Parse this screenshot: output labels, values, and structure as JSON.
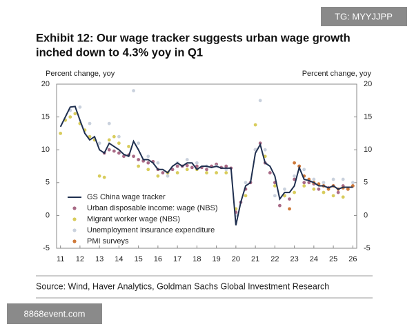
{
  "watermarks": [
    "TG: MYYJJPP",
    "8868event.com"
  ],
  "chart_data": {
    "type": "line",
    "title": [
      "Exhibit 12: Our wage tracker suggests urban wage growth",
      "inched down to 4.3% yoy in Q1"
    ],
    "y_label": "Percent change, yoy",
    "y2_label": "Percent change, yoy",
    "source": "Source: Wind, Haver Analytics, Goldman Sachs Global Investment Research",
    "xlim": [
      10.8,
      26.2
    ],
    "xticks": [
      11,
      12,
      13,
      14,
      15,
      16,
      17,
      18,
      19,
      20,
      21,
      22,
      23,
      24,
      25,
      26
    ],
    "ylim": [
      -5,
      20
    ],
    "yticks": [
      -5,
      0,
      5,
      10,
      15,
      20
    ],
    "y2lim": [
      -5,
      20
    ],
    "y2ticks": [
      -5,
      0,
      5,
      10,
      15,
      20
    ],
    "legend": "lower-left",
    "series": [
      {
        "name": "GS China wage tracker",
        "mark": "line",
        "color": "#1f2f4f",
        "x": [
          11,
          11.25,
          11.5,
          11.75,
          12,
          12.25,
          12.5,
          12.75,
          13,
          13.25,
          13.5,
          13.75,
          14,
          14.25,
          14.5,
          14.75,
          15,
          15.25,
          15.5,
          15.75,
          16,
          16.25,
          16.5,
          16.75,
          17,
          17.25,
          17.5,
          17.75,
          18,
          18.25,
          18.5,
          18.75,
          19,
          19.25,
          19.5,
          19.75,
          20,
          20.25,
          20.5,
          20.75,
          21,
          21.25,
          21.5,
          21.75,
          22,
          22.25,
          22.5,
          22.75,
          23,
          23.25,
          23.5,
          23.75,
          24,
          24.25,
          24.5,
          24.75,
          25,
          25.25,
          25.5,
          25.75,
          26
        ],
        "values": [
          13.5,
          15,
          16.5,
          16.6,
          14.5,
          12.5,
          11.5,
          12,
          10,
          9.5,
          11,
          10.5,
          10,
          9.3,
          9,
          11.3,
          10,
          8.5,
          8.5,
          8,
          7,
          7,
          6.5,
          7.5,
          8,
          7.5,
          8,
          8,
          7,
          7.5,
          7.5,
          7.3,
          7.5,
          7.2,
          7.2,
          7.2,
          -1.5,
          2,
          4.5,
          5,
          9.5,
          10.8,
          8,
          7.5,
          6,
          2.5,
          3.5,
          3.5,
          4.5,
          7.3,
          5.5,
          5.3,
          5,
          4.5,
          4.5,
          4.2,
          4.5,
          4,
          4.3,
          4.3,
          4.3
        ]
      },
      {
        "name": "Urban disposable income: wage (NBS)",
        "mark": "dot",
        "color": "#a86a86",
        "x": [
          13.25,
          13.5,
          13.75,
          14,
          14.25,
          14.5,
          14.75,
          15,
          15.25,
          15.5,
          15.75,
          16,
          16.25,
          16.5,
          16.75,
          17,
          17.25,
          17.5,
          17.75,
          18,
          18.25,
          18.5,
          18.75,
          19,
          19.25,
          19.5,
          19.75,
          20,
          20.25,
          20.5,
          20.75,
          21,
          21.25,
          21.5,
          21.75,
          22,
          22.25,
          22.5,
          22.75,
          23,
          23.25,
          23.5,
          23.75,
          24,
          24.25,
          24.5,
          24.75,
          25,
          25.25,
          25.5,
          25.75,
          26
        ],
        "values": [
          9.5,
          10,
          9.8,
          9.5,
          9,
          9.2,
          9,
          8.5,
          8.3,
          8,
          8.2,
          7,
          6.5,
          6.5,
          7,
          7.5,
          7.5,
          7.6,
          7.3,
          7.5,
          7.3,
          7,
          7.5,
          7.8,
          7.3,
          7.5,
          7.2,
          0.5,
          2,
          4,
          5,
          10,
          11,
          8,
          6.5,
          5,
          1.5,
          3,
          2.5,
          5.5,
          7.5,
          5,
          5,
          4.8,
          4,
          4.5,
          4.2,
          4.5,
          3.5,
          4.5,
          4,
          4.5
        ]
      },
      {
        "name": "Migrant worker wage (NBS)",
        "mark": "dot",
        "color": "#d8cc5c",
        "x": [
          11,
          11.25,
          11.5,
          11.75,
          12,
          12.25,
          12.5,
          12.75,
          13,
          13.25,
          13.5,
          13.75,
          14,
          14.5,
          15,
          15.5,
          16,
          16.5,
          17,
          17.5,
          18,
          18.5,
          19,
          19.5,
          20,
          20.5,
          21,
          21.5,
          22,
          22.5,
          23,
          23.5,
          24,
          24.5,
          25,
          25.5
        ],
        "values": [
          12.5,
          14.5,
          15,
          15.5,
          14,
          13,
          12,
          11.5,
          6,
          5.8,
          11.5,
          12,
          11,
          10.5,
          7.5,
          7,
          6,
          6.5,
          6.5,
          7,
          7,
          6.5,
          6.5,
          6.5,
          1,
          3,
          13.8,
          9,
          4.5,
          3,
          3.5,
          4.5,
          4,
          3.5,
          3,
          2.8
        ]
      },
      {
        "name": "Unemployment insurance expenditure",
        "mark": "dot",
        "color": "#c9d1dd",
        "x": [
          11.5,
          12,
          12.5,
          13,
          13.5,
          14,
          14.75,
          15,
          15.5,
          16,
          16.5,
          17,
          17.5,
          18,
          18.5,
          19,
          19.5,
          20,
          20.5,
          21,
          21.25,
          21.5,
          22,
          22.5,
          23,
          23.5,
          24,
          24.5,
          25,
          25.5,
          26
        ],
        "values": [
          16,
          16.5,
          14,
          11,
          14,
          12,
          19,
          11,
          9,
          8,
          6,
          8,
          8.5,
          8,
          7.5,
          7.5,
          7,
          0,
          5,
          10,
          17.5,
          10,
          3,
          4,
          6,
          7,
          5.5,
          5,
          5.5,
          5.5,
          5
        ]
      },
      {
        "name": "PMI surveys",
        "mark": "dot",
        "color": "#cf7a3a",
        "x": [
          22.75,
          23,
          23.25,
          23.5,
          23.75,
          24,
          24.25,
          24.5,
          24.75,
          25,
          25.25,
          25.5,
          25.75,
          26
        ],
        "values": [
          1,
          8,
          7.5,
          6,
          5.5,
          5,
          4.8,
          4.5,
          4,
          4.5,
          4,
          4.2,
          4,
          4.5
        ]
      }
    ]
  }
}
